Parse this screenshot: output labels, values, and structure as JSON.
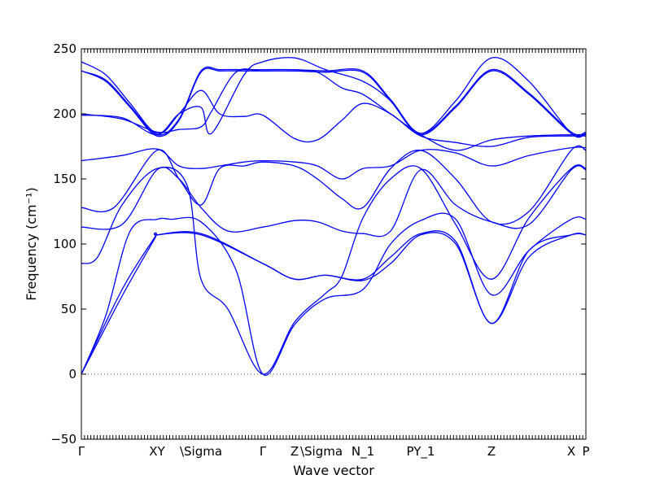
{
  "chart_data": {
    "type": "line",
    "xlabel": "Wave vector",
    "ylabel": "Frequency (cm⁻¹)",
    "ylim": [
      -50,
      250
    ],
    "yticks": [
      -50,
      0,
      50,
      100,
      150,
      200,
      250
    ],
    "xlim": [
      0,
      6.2
    ],
    "x_ticks": [
      {
        "label": "Γ",
        "x": 0.0
      },
      {
        "label": "XY",
        "x": 0.93
      },
      {
        "label": "\\Sigma",
        "x": 1.47
      },
      {
        "label": "Γ",
        "x": 2.23
      },
      {
        "label": "Z",
        "x": 2.62
      },
      {
        "label": "\\Sigma",
        "x": 2.95
      },
      {
        "label": "N_1",
        "x": 3.46
      },
      {
        "label": "PY_1",
        "x": 4.17
      },
      {
        "label": "Z",
        "x": 5.04
      },
      {
        "label": "X",
        "x": 6.02
      },
      {
        "label": "P",
        "x": 6.2
      }
    ],
    "zero_line": true,
    "color": "#0000ff",
    "series": [
      {
        "x": [
          0,
          0.5,
          0.9,
          0.93,
          1.47,
          2.23,
          2.62,
          3.0,
          3.46,
          3.8,
          4.17,
          4.6,
          5.04,
          5.5,
          6.02,
          6.2
        ],
        "y": [
          0,
          60,
          104,
          107,
          107,
          85,
          73,
          76,
          72,
          85,
          107,
          100,
          39,
          90,
          107,
          107
        ]
      },
      {
        "x": [
          0,
          0.5,
          0.9,
          0.93,
          1.47,
          2.23,
          2.62,
          3.0,
          3.46,
          3.8,
          4.17,
          4.6,
          5.04,
          5.5,
          6.02,
          6.2
        ],
        "y": [
          0,
          65,
          105,
          107,
          108,
          85,
          73,
          76,
          73,
          90,
          108,
          102,
          39,
          95,
          107,
          107
        ]
      },
      {
        "x": [
          0,
          0.3,
          0.6,
          0.93,
          1.1,
          1.47,
          1.9,
          2.23,
          2.62,
          3.0,
          3.46,
          3.8,
          4.17,
          4.6,
          5.04,
          5.5,
          6.02,
          6.2
        ],
        "y": [
          0,
          45,
          110,
          119,
          119,
          117,
          80,
          0,
          38,
          58,
          65,
          100,
          118,
          119,
          61,
          95,
          119,
          119
        ]
      },
      {
        "x": [
          0,
          0.2,
          0.5,
          0.93,
          1.3,
          1.47,
          1.8,
          2.23,
          2.62,
          3.0,
          3.2,
          3.46,
          3.8,
          4.17,
          4.6,
          5.04,
          5.5,
          6.02,
          6.2
        ],
        "y": [
          85,
          90,
          130,
          158,
          145,
          73,
          50,
          0,
          40,
          62,
          75,
          120,
          150,
          158,
          115,
          73,
          120,
          158,
          158
        ]
      },
      {
        "x": [
          0,
          0.5,
          0.93,
          1.2,
          1.47,
          1.8,
          2.23,
          2.62,
          2.9,
          3.2,
          3.46,
          3.8,
          4.17,
          4.6,
          5.04,
          5.5,
          6.02,
          6.2
        ],
        "y": [
          113,
          115,
          157,
          150,
          128,
          110,
          113,
          118,
          117,
          110,
          108,
          110,
          157,
          130,
          117,
          115,
          157,
          157
        ]
      },
      {
        "x": [
          0,
          0.4,
          0.93,
          1.2,
          1.47,
          1.7,
          2.0,
          2.23,
          2.62,
          2.9,
          3.2,
          3.46,
          3.8,
          4.17,
          4.6,
          5.04,
          5.5,
          6.02,
          6.2
        ],
        "y": [
          128,
          128,
          172,
          150,
          130,
          158,
          160,
          163,
          160,
          150,
          135,
          128,
          158,
          172,
          150,
          117,
          125,
          172,
          172
        ]
      },
      {
        "x": [
          0,
          0.5,
          0.93,
          1.2,
          1.47,
          1.7,
          2.0,
          2.23,
          2.62,
          2.9,
          3.2,
          3.46,
          3.8,
          4.17,
          4.6,
          5.04,
          5.5,
          6.02,
          6.2
        ],
        "y": [
          164,
          168,
          173,
          160,
          158,
          160,
          163,
          164,
          163,
          160,
          150,
          158,
          160,
          172,
          170,
          160,
          168,
          174,
          174
        ]
      },
      {
        "x": [
          0,
          0.5,
          0.93,
          1.2,
          1.47,
          1.6,
          1.9,
          2.23,
          2.62,
          2.9,
          3.2,
          3.46,
          3.8,
          4.17,
          4.6,
          5.04,
          5.5,
          6.02,
          6.2
        ],
        "y": [
          200,
          196,
          186,
          188,
          190,
          202,
          232,
          233,
          233,
          232,
          220,
          215,
          200,
          184,
          172,
          180,
          183,
          184,
          184
        ]
      },
      {
        "x": [
          0,
          0.5,
          0.93,
          1.2,
          1.47,
          1.7,
          2.0,
          2.23,
          2.62,
          2.9,
          3.2,
          3.46,
          3.8,
          4.17,
          4.6,
          5.04,
          5.5,
          6.02,
          6.2
        ],
        "y": [
          199,
          197,
          184,
          200,
          218,
          200,
          198,
          199,
          181,
          180,
          195,
          208,
          200,
          183,
          178,
          175,
          182,
          183,
          183
        ]
      },
      {
        "x": [
          0,
          0.3,
          0.6,
          0.93,
          1.2,
          1.47,
          1.7,
          2.0,
          2.23,
          2.62,
          3.0,
          3.46,
          3.8,
          4.17,
          4.6,
          5.04,
          5.5,
          6.02,
          6.2
        ],
        "y": [
          233,
          225,
          205,
          183,
          195,
          232,
          233,
          233,
          233,
          233,
          232,
          232,
          210,
          184,
          205,
          233,
          215,
          185,
          185
        ]
      },
      {
        "x": [
          0,
          0.3,
          0.6,
          0.93,
          1.2,
          1.47,
          1.7,
          2.0,
          2.23,
          2.62,
          3.0,
          3.46,
          3.8,
          4.17,
          4.6,
          5.04,
          5.5,
          6.02,
          6.2
        ],
        "y": [
          233,
          226,
          206,
          184,
          196,
          233,
          234,
          234,
          234,
          234,
          233,
          233,
          211,
          185,
          206,
          234,
          216,
          186,
          186
        ]
      },
      {
        "x": [
          0,
          0.3,
          0.6,
          0.93,
          1.2,
          1.47,
          1.6,
          2.0,
          2.23,
          2.62,
          3.0,
          3.46,
          3.8,
          4.17,
          4.6,
          5.04,
          5.5,
          6.02,
          6.2
        ],
        "y": [
          240,
          230,
          208,
          185,
          200,
          205,
          185,
          230,
          240,
          243,
          234,
          225,
          210,
          185,
          210,
          243,
          225,
          185,
          185
        ]
      }
    ]
  }
}
